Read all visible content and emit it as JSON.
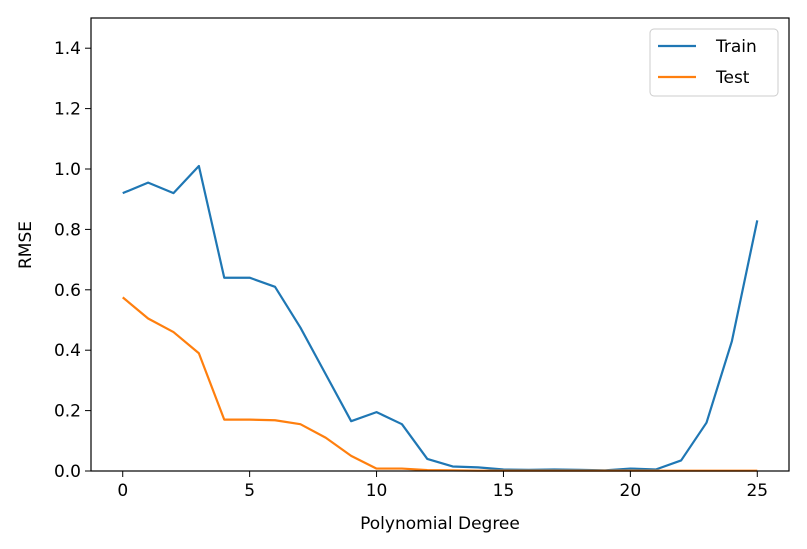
{
  "chart_data": {
    "type": "line",
    "title": "",
    "xlabel": "Polynomial Degree",
    "ylabel": "RMSE",
    "xlim": [
      -1.25,
      26.25
    ],
    "ylim": [
      0,
      1.5
    ],
    "xticks": [
      "0",
      "5",
      "10",
      "15",
      "20",
      "25"
    ],
    "yticks": [
      "0.0",
      "0.2",
      "0.4",
      "0.6",
      "0.8",
      "1.0",
      "1.2",
      "1.4"
    ],
    "grid": false,
    "legend_position": "top-right",
    "x": [
      0,
      1,
      2,
      3,
      4,
      5,
      6,
      7,
      8,
      9,
      10,
      11,
      12,
      13,
      14,
      15,
      16,
      17,
      18,
      19,
      20,
      21,
      22,
      23,
      24,
      25
    ],
    "series": [
      {
        "name": "Train",
        "color": "#1f77b4",
        "values": [
          0.92,
          0.955,
          0.92,
          1.01,
          0.64,
          0.64,
          0.61,
          0.475,
          0.32,
          0.165,
          0.195,
          0.155,
          0.04,
          0.015,
          0.012,
          0.005,
          0.004,
          0.005,
          0.004,
          0.002,
          0.008,
          0.005,
          0.035,
          0.16,
          0.43,
          0.83
        ]
      },
      {
        "name": "Test",
        "color": "#ff7f0e",
        "values": [
          0.575,
          0.505,
          0.46,
          0.39,
          0.17,
          0.17,
          0.168,
          0.155,
          0.11,
          0.05,
          0.008,
          0.008,
          0.003,
          0.002,
          0.001,
          0.001,
          0.001,
          0.001,
          0.001,
          0.001,
          0.001,
          0.001,
          0.001,
          0.001,
          0.001,
          0.001
        ]
      }
    ]
  }
}
